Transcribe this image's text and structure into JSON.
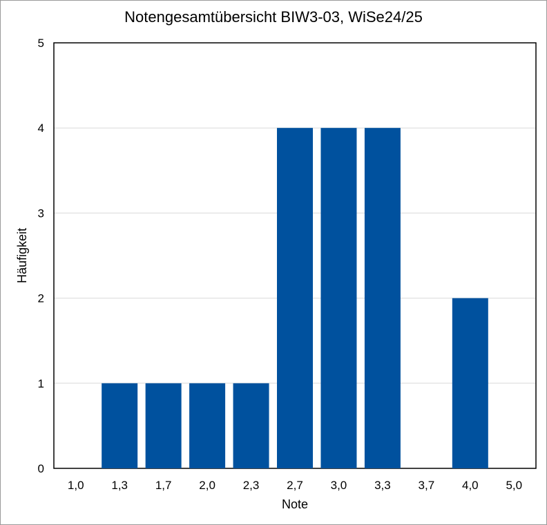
{
  "chart_data": {
    "type": "bar",
    "title": "Notengesamtübersicht BIW3-03, WiSe24/25",
    "xlabel": "Note",
    "ylabel": "Häufigkeit",
    "categories": [
      "1,0",
      "1,3",
      "1,7",
      "2,0",
      "2,3",
      "2,7",
      "3,0",
      "3,3",
      "3,7",
      "4,0",
      "5,0"
    ],
    "values": [
      0,
      1,
      1,
      1,
      1,
      4,
      4,
      4,
      0,
      2,
      0
    ],
    "ylim": [
      0,
      5
    ],
    "yticks": [
      "0",
      "1",
      "2",
      "3",
      "4",
      "5"
    ],
    "grid": true,
    "bar_color": "#00519e"
  }
}
